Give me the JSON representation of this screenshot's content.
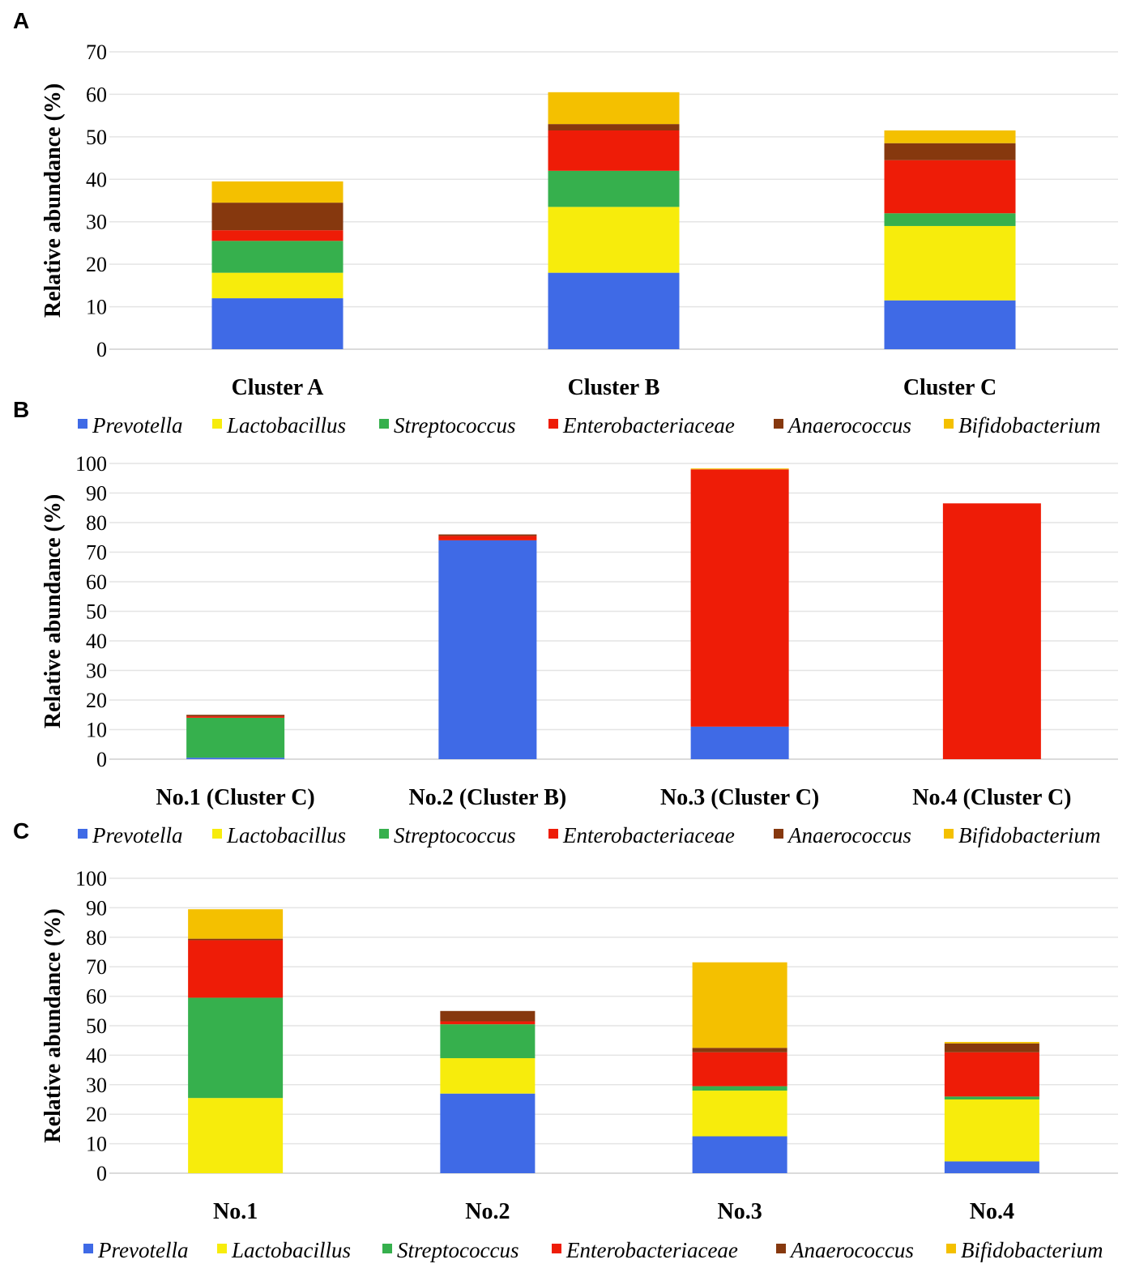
{
  "colors": {
    "Prevotella": "#3f6ae6",
    "Lactobacillus": "#f7ec0c",
    "Streptococcus": "#36b04d",
    "Enterobacteriaceae": "#ee1c07",
    "Anaerococcus": "#86380e",
    "Bifidobacterium": "#f4c000"
  },
  "chart_data": [
    {
      "panel": "A",
      "type": "bar",
      "stacked": true,
      "ylabel": "Relative abundance (%)",
      "ylim": [
        0,
        70
      ],
      "yticks": [
        0,
        10,
        20,
        30,
        40,
        50,
        60,
        70
      ],
      "categories": [
        "Cluster A",
        "Cluster B",
        "Cluster C"
      ],
      "series": [
        {
          "name": "Prevotella",
          "values": [
            12,
            18,
            11.5
          ]
        },
        {
          "name": "Lactobacillus",
          "values": [
            6,
            15.5,
            17.5
          ]
        },
        {
          "name": "Streptococcus",
          "values": [
            7.5,
            8.5,
            3
          ]
        },
        {
          "name": "Enterobacteriaceae",
          "values": [
            2.5,
            9.5,
            12.5
          ]
        },
        {
          "name": "Anaerococcus",
          "values": [
            6.5,
            1.5,
            4
          ]
        },
        {
          "name": "Bifidobacterium",
          "values": [
            5,
            7.5,
            3
          ]
        }
      ],
      "legend_position": "bottom"
    },
    {
      "panel": "B",
      "type": "bar",
      "stacked": true,
      "ylabel": "Relative abundance (%)",
      "ylim": [
        0,
        100
      ],
      "yticks": [
        0,
        10,
        20,
        30,
        40,
        50,
        60,
        70,
        80,
        90,
        100
      ],
      "categories": [
        "No.1 (Cluster C)",
        "No.2 (Cluster B)",
        "No.3 (Cluster C)",
        "No.4 (Cluster C)"
      ],
      "series": [
        {
          "name": "Prevotella",
          "values": [
            0.5,
            74,
            11,
            0
          ]
        },
        {
          "name": "Lactobacillus",
          "values": [
            0,
            0,
            0,
            0
          ]
        },
        {
          "name": "Streptococcus",
          "values": [
            13.5,
            0,
            0,
            0
          ]
        },
        {
          "name": "Enterobacteriaceae",
          "values": [
            0.5,
            1.5,
            87,
            86.5
          ]
        },
        {
          "name": "Anaerococcus",
          "values": [
            0.5,
            0.5,
            0,
            0
          ]
        },
        {
          "name": "Bifidobacterium",
          "values": [
            0,
            0,
            0.3,
            0
          ]
        }
      ],
      "legend_position": "bottom"
    },
    {
      "panel": "C",
      "type": "bar",
      "stacked": true,
      "ylabel": "Relative abundance (%)",
      "ylim": [
        0,
        100
      ],
      "yticks": [
        0,
        10,
        20,
        30,
        40,
        50,
        60,
        70,
        80,
        90,
        100
      ],
      "categories": [
        "No.1",
        "No.2",
        "No.3",
        "No.4"
      ],
      "series": [
        {
          "name": "Prevotella",
          "values": [
            0,
            27,
            12.5,
            4
          ]
        },
        {
          "name": "Lactobacillus",
          "values": [
            25.5,
            12,
            15.5,
            21
          ]
        },
        {
          "name": "Streptococcus",
          "values": [
            34,
            11.5,
            1.5,
            1
          ]
        },
        {
          "name": "Enterobacteriaceae",
          "values": [
            19.5,
            1,
            11.5,
            15
          ]
        },
        {
          "name": "Anaerococcus",
          "values": [
            0.5,
            3.5,
            1.5,
            3
          ]
        },
        {
          "name": "Bifidobacterium",
          "values": [
            10,
            0,
            29,
            0.5
          ]
        }
      ],
      "legend_position": "bottom"
    }
  ]
}
